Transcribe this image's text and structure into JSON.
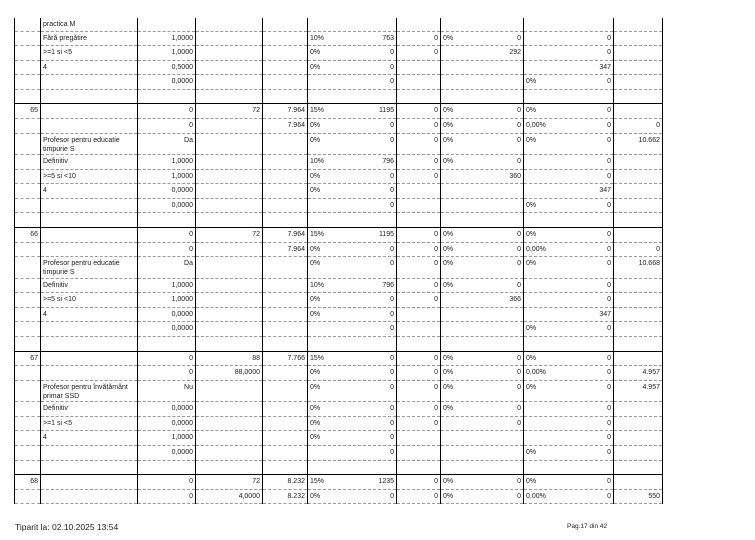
{
  "table": {
    "groups": [
      {
        "rows": [
          {
            "cells": [
              "",
              "practica M",
              "",
              "",
              "",
              "",
              "",
              "",
              "",
              "",
              "",
              "",
              ""
            ]
          },
          {
            "cells": [
              "",
              "Fără pregătire",
              "1,0000",
              "",
              "",
              "10%",
              "763",
              "0",
              "0%",
              "0",
              "",
              "0",
              ""
            ]
          },
          {
            "cells": [
              "",
              ">=1 si <5",
              "1,0000",
              "",
              "",
              "0%",
              "0",
              "0",
              "",
              "292",
              "",
              "0",
              ""
            ]
          },
          {
            "cells": [
              "",
              "4",
              "0,5000",
              "",
              "",
              "0%",
              "0",
              "",
              "",
              "",
              "",
              "347",
              ""
            ]
          },
          {
            "cells": [
              "",
              "",
              "0,0000",
              "",
              "",
              "",
              "0",
              "",
              "",
              "",
              "0%",
              "0",
              ""
            ]
          },
          {
            "cells": [
              "",
              "",
              "",
              "",
              "",
              "",
              "",
              "",
              "",
              "",
              "",
              "",
              ""
            ]
          }
        ]
      },
      {
        "rows": [
          {
            "cells": [
              "65",
              "",
              "0",
              "72",
              "7.964",
              "15%",
              "1195",
              "0",
              "0%",
              "0",
              "0%",
              "0",
              ""
            ]
          },
          {
            "cells": [
              "",
              "",
              "0",
              "",
              "7.964",
              "0%",
              "0",
              "0",
              "0%",
              "0",
              "0,00%",
              "0",
              "0"
            ]
          },
          {
            "cells": [
              "",
              "Profesor pentru educatie timpurie S",
              "Da",
              "",
              "",
              "0%",
              "0",
              "0",
              "0%",
              "0",
              "0%",
              "0",
              "10.662"
            ]
          },
          {
            "cells": [
              "",
              "Definitiv",
              "1,0000",
              "",
              "",
              "10%",
              "796",
              "0",
              "0%",
              "0",
              "",
              "0",
              ""
            ]
          },
          {
            "cells": [
              "",
              ">=5 si <10",
              "1,0000",
              "",
              "",
              "0%",
              "0",
              "0",
              "",
              "360",
              "",
              "0",
              ""
            ]
          },
          {
            "cells": [
              "",
              "4",
              "0,0000",
              "",
              "",
              "0%",
              "0",
              "",
              "",
              "",
              "",
              "347",
              ""
            ]
          },
          {
            "cells": [
              "",
              "",
              "0,0000",
              "",
              "",
              "",
              "0",
              "",
              "",
              "",
              "0%",
              "0",
              ""
            ]
          },
          {
            "cells": [
              "",
              "",
              "",
              "",
              "",
              "",
              "",
              "",
              "",
              "",
              "",
              "",
              ""
            ]
          }
        ]
      },
      {
        "rows": [
          {
            "cells": [
              "66",
              "",
              "0",
              "72",
              "7.964",
              "15%",
              "1195",
              "0",
              "0%",
              "0",
              "0%",
              "0",
              ""
            ]
          },
          {
            "cells": [
              "",
              "",
              "0",
              "",
              "7.964",
              "0%",
              "0",
              "0",
              "0%",
              "0",
              "0,00%",
              "0",
              "0"
            ]
          },
          {
            "cells": [
              "",
              "Profesor pentru educatie timpurie S",
              "Da",
              "",
              "",
              "0%",
              "0",
              "0",
              "0%",
              "0",
              "0%",
              "0",
              "10.668"
            ]
          },
          {
            "cells": [
              "",
              "Definitiv",
              "1,0000",
              "",
              "",
              "10%",
              "796",
              "0",
              "0%",
              "0",
              "",
              "0",
              ""
            ]
          },
          {
            "cells": [
              "",
              ">=5 si <10",
              "1,0000",
              "",
              "",
              "0%",
              "0",
              "0",
              "",
              "366",
              "",
              "0",
              ""
            ]
          },
          {
            "cells": [
              "",
              "4",
              "0,0000",
              "",
              "",
              "0%",
              "0",
              "",
              "",
              "",
              "",
              "347",
              ""
            ]
          },
          {
            "cells": [
              "",
              "",
              "0,0000",
              "",
              "",
              "",
              "0",
              "",
              "",
              "",
              "0%",
              "0",
              ""
            ]
          },
          {
            "cells": [
              "",
              "",
              "",
              "",
              "",
              "",
              "",
              "",
              "",
              "",
              "",
              "",
              ""
            ]
          }
        ]
      },
      {
        "rows": [
          {
            "cells": [
              "67",
              "",
              "0",
              "88",
              "7.766",
              "15%",
              "0",
              "0",
              "0%",
              "0",
              "0%",
              "0",
              ""
            ]
          },
          {
            "cells": [
              "",
              "",
              "0",
              "88,0000",
              "",
              "0%",
              "0",
              "0",
              "0%",
              "0",
              "0,00%",
              "0",
              "4.957"
            ]
          },
          {
            "cells": [
              "",
              "Profesor pentru învățământ primar SSD",
              "Nu",
              "",
              "",
              "0%",
              "0",
              "0",
              "0%",
              "0",
              "0%",
              "0",
              "4.957"
            ]
          },
          {
            "cells": [
              "",
              "Definitiv",
              "0,0000",
              "",
              "",
              "0%",
              "0",
              "0",
              "0%",
              "0",
              "",
              "0",
              ""
            ]
          },
          {
            "cells": [
              "",
              ">=1 si <5",
              "0,0000",
              "",
              "",
              "0%",
              "0",
              "0",
              "",
              "0",
              "",
              "0",
              ""
            ]
          },
          {
            "cells": [
              "",
              "4",
              "1,0000",
              "",
              "",
              "0%",
              "0",
              "",
              "",
              "",
              "",
              "0",
              ""
            ]
          },
          {
            "cells": [
              "",
              "",
              "0,0000",
              "",
              "",
              "",
              "0",
              "",
              "",
              "",
              "0%",
              "0",
              ""
            ]
          },
          {
            "cells": [
              "",
              "",
              "",
              "",
              "",
              "",
              "",
              "",
              "",
              "",
              "",
              "",
              ""
            ]
          }
        ]
      },
      {
        "rows": [
          {
            "cells": [
              "68",
              "",
              "0",
              "72",
              "8.232",
              "15%",
              "1235",
              "0",
              "0%",
              "0",
              "0%",
              "0",
              ""
            ]
          },
          {
            "cells": [
              "",
              "",
              "0",
              "4,0000",
              "8.232",
              "0%",
              "0",
              "0",
              "0%",
              "0",
              "0,00%",
              "0",
              "550"
            ]
          }
        ]
      }
    ]
  },
  "footer": {
    "printed": "Tiparit la: 02.10.2025 13:54",
    "page": "Pag.17 din 42"
  }
}
